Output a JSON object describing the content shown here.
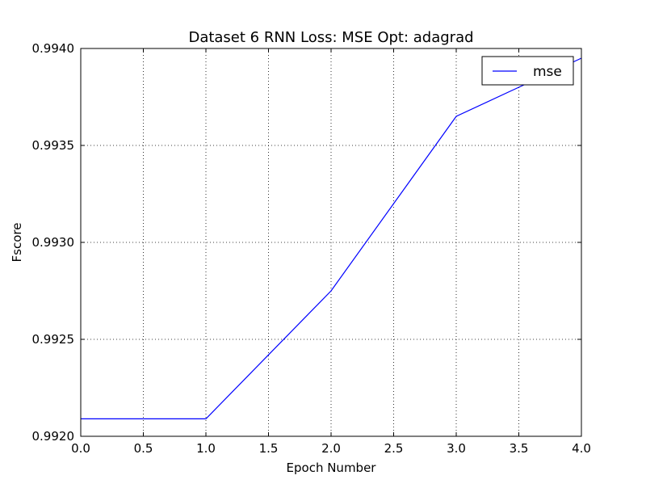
{
  "chart_data": {
    "type": "line",
    "title": "Dataset 6 RNN  Loss: MSE  Opt: adagrad",
    "xlabel": "Epoch Number",
    "ylabel": "Fscore",
    "xlim": [
      0.0,
      4.0
    ],
    "ylim": [
      0.992,
      0.994
    ],
    "x_ticks": [
      "0.0",
      "0.5",
      "1.0",
      "1.5",
      "2.0",
      "2.5",
      "3.0",
      "3.5",
      "4.0"
    ],
    "x_tick_values": [
      0.0,
      0.5,
      1.0,
      1.5,
      2.0,
      2.5,
      3.0,
      3.5,
      4.0
    ],
    "y_ticks": [
      "0.9920",
      "0.9925",
      "0.9930",
      "0.9935",
      "0.9940"
    ],
    "y_tick_values": [
      0.992,
      0.9925,
      0.993,
      0.9935,
      0.994
    ],
    "grid": true,
    "legend_position": "top-right",
    "series": [
      {
        "name": "mse",
        "color": "#0000ff",
        "x": [
          0,
          1,
          2,
          3,
          4
        ],
        "y": [
          0.99209,
          0.99209,
          0.99275,
          0.99365,
          0.99395
        ]
      }
    ]
  }
}
